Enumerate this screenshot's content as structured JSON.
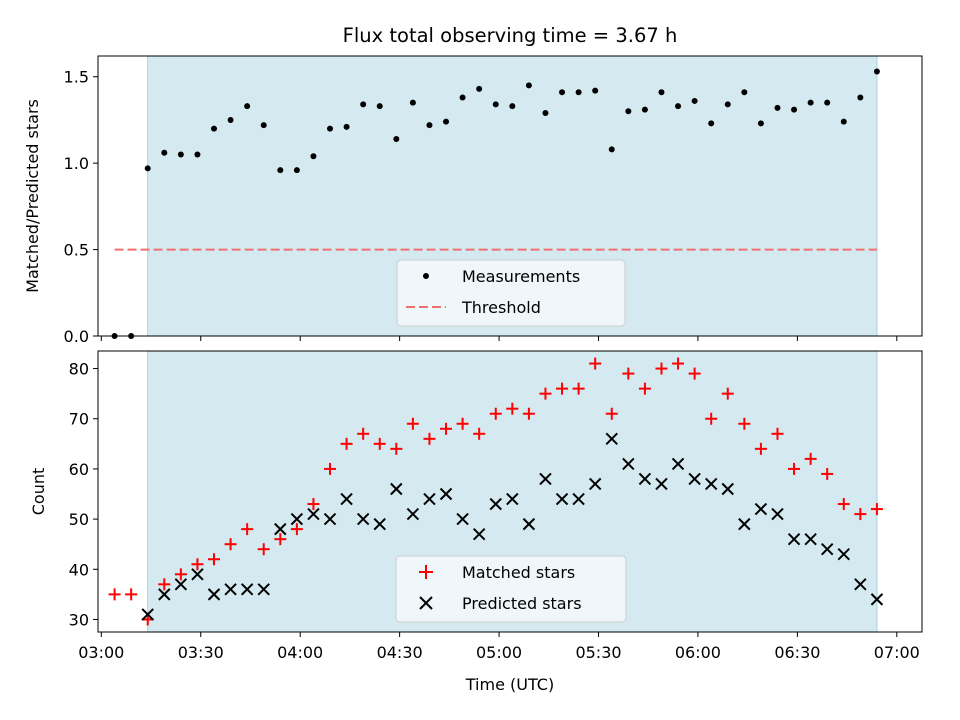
{
  "colors": {
    "observing_window": "#d4eaf0",
    "observing_window_edge": "#a9d4de",
    "measurement": "#000000",
    "threshold": "#f07070",
    "matched": "#ff0000",
    "predicted": "#000000"
  },
  "chart_data": [
    {
      "type": "scatter",
      "title": "Flux total observing time = 3.67 h",
      "xlabel": "",
      "ylabel": "Matched/Predicted stars",
      "xlim": [
        "03:00",
        "07:00"
      ],
      "ylim": [
        0,
        1.62
      ],
      "y_ticks": [
        {
          "value": 0.0,
          "label": "0.0"
        },
        {
          "value": 0.5,
          "label": "0.5"
        },
        {
          "value": 1.0,
          "label": "1.0"
        },
        {
          "value": 1.5,
          "label": "1.5"
        }
      ],
      "observing_window": [
        "03:14",
        "06:54"
      ],
      "threshold": {
        "value": 0.5,
        "x_range": [
          "03:04",
          "06:54"
        ]
      },
      "legend": {
        "placement": "lower-center",
        "entries": [
          "Measurements",
          "Threshold"
        ]
      },
      "series": [
        {
          "name": "Measurements",
          "x": [
            "03:04",
            "03:09",
            "03:14",
            "03:19",
            "03:24",
            "03:29",
            "03:34",
            "03:39",
            "03:44",
            "03:49",
            "03:54",
            "03:59",
            "04:04",
            "04:09",
            "04:14",
            "04:19",
            "04:24",
            "04:29",
            "04:34",
            "04:39",
            "04:44",
            "04:49",
            "04:54",
            "04:59",
            "05:04",
            "05:09",
            "05:14",
            "05:19",
            "05:24",
            "05:29",
            "05:34",
            "05:39",
            "05:44",
            "05:49",
            "05:54",
            "05:59",
            "06:04",
            "06:09",
            "06:14",
            "06:19",
            "06:24",
            "06:29",
            "06:34",
            "06:39",
            "06:44",
            "06:49",
            "06:54"
          ],
          "y": [
            0.0,
            0.0,
            0.97,
            1.06,
            1.05,
            1.05,
            1.2,
            1.25,
            1.33,
            1.22,
            0.96,
            0.96,
            1.04,
            1.2,
            1.21,
            1.34,
            1.33,
            1.14,
            1.35,
            1.22,
            1.24,
            1.38,
            1.43,
            1.34,
            1.33,
            1.45,
            1.29,
            1.41,
            1.41,
            1.42,
            1.08,
            1.3,
            1.31,
            1.41,
            1.33,
            1.36,
            1.23,
            1.34,
            1.41,
            1.23,
            1.32,
            1.31,
            1.35,
            1.35,
            1.24,
            1.38,
            1.53
          ]
        }
      ]
    },
    {
      "type": "scatter",
      "title": "",
      "xlabel": "Time (UTC)",
      "ylabel": "Count",
      "xlim": [
        "03:00",
        "07:00"
      ],
      "ylim": [
        27.5,
        83.5
      ],
      "y_ticks": [
        {
          "value": 30,
          "label": "30"
        },
        {
          "value": 40,
          "label": "40"
        },
        {
          "value": 50,
          "label": "50"
        },
        {
          "value": 60,
          "label": "60"
        },
        {
          "value": 70,
          "label": "70"
        },
        {
          "value": 80,
          "label": "80"
        }
      ],
      "x_ticks": [
        {
          "value": "03:00",
          "label": "03:00"
        },
        {
          "value": "03:30",
          "label": "03:30"
        },
        {
          "value": "04:00",
          "label": "04:00"
        },
        {
          "value": "04:30",
          "label": "04:30"
        },
        {
          "value": "05:00",
          "label": "05:00"
        },
        {
          "value": "05:30",
          "label": "05:30"
        },
        {
          "value": "06:00",
          "label": "06:00"
        },
        {
          "value": "06:30",
          "label": "06:30"
        },
        {
          "value": "07:00",
          "label": "07:00"
        }
      ],
      "observing_window": [
        "03:14",
        "06:54"
      ],
      "legend": {
        "placement": "lower-center",
        "entries": [
          "Matched stars",
          "Predicted stars"
        ]
      },
      "series": [
        {
          "name": "Matched stars",
          "x": [
            "03:04",
            "03:09",
            "03:14",
            "03:19",
            "03:24",
            "03:29",
            "03:34",
            "03:39",
            "03:44",
            "03:49",
            "03:54",
            "03:59",
            "04:04",
            "04:09",
            "04:14",
            "04:19",
            "04:24",
            "04:29",
            "04:34",
            "04:39",
            "04:44",
            "04:49",
            "04:54",
            "04:59",
            "05:04",
            "05:09",
            "05:14",
            "05:19",
            "05:24",
            "05:29",
            "05:34",
            "05:39",
            "05:44",
            "05:49",
            "05:54",
            "05:59",
            "06:04",
            "06:09",
            "06:14",
            "06:19",
            "06:24",
            "06:29",
            "06:34",
            "06:39",
            "06:44",
            "06:49",
            "06:54"
          ],
          "y": [
            35,
            35,
            30,
            37,
            39,
            41,
            42,
            45,
            48,
            44,
            46,
            48,
            53,
            60,
            65,
            67,
            65,
            64,
            69,
            66,
            68,
            69,
            67,
            71,
            72,
            71,
            75,
            76,
            76,
            81,
            71,
            79,
            76,
            80,
            81,
            79,
            70,
            75,
            69,
            64,
            67,
            60,
            62,
            59,
            53,
            51,
            52
          ]
        },
        {
          "name": "Predicted stars",
          "x": [
            "03:14",
            "03:19",
            "03:24",
            "03:29",
            "03:34",
            "03:39",
            "03:44",
            "03:49",
            "03:54",
            "03:59",
            "04:04",
            "04:09",
            "04:14",
            "04:19",
            "04:24",
            "04:29",
            "04:34",
            "04:39",
            "04:44",
            "04:49",
            "04:54",
            "04:59",
            "05:04",
            "05:09",
            "05:14",
            "05:19",
            "05:24",
            "05:29",
            "05:34",
            "05:39",
            "05:44",
            "05:49",
            "05:54",
            "05:59",
            "06:04",
            "06:09",
            "06:14",
            "06:19",
            "06:24",
            "06:29",
            "06:34",
            "06:39",
            "06:44",
            "06:49",
            "06:54"
          ],
          "y": [
            31,
            35,
            37,
            39,
            35,
            36,
            36,
            36,
            48,
            50,
            51,
            50,
            54,
            50,
            49,
            56,
            51,
            54,
            55,
            50,
            47,
            53,
            54,
            49,
            58,
            54,
            54,
            57,
            66,
            61,
            58,
            57,
            61,
            58,
            57,
            56,
            49,
            52,
            51,
            46,
            46,
            44,
            43,
            37,
            34
          ]
        }
      ]
    }
  ]
}
